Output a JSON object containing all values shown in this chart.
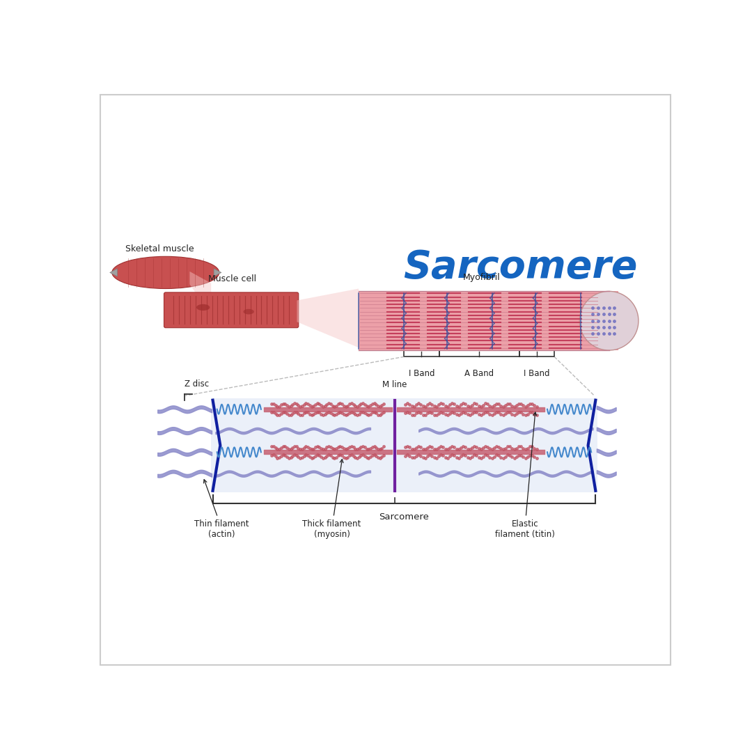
{
  "title": "Sarcomere",
  "title_color": "#1565C0",
  "title_fontsize": 40,
  "bg_color": "#FFFFFF",
  "border_color": "#CCCCCC",
  "labels": {
    "skeletal_muscle": "Skeletal muscle",
    "muscle_cell": "Muscle cell",
    "myofibril": "Myofibril",
    "i_band_left": "I Band",
    "a_band": "A Band",
    "i_band_right": "I Band",
    "z_disc": "Z disc",
    "m_line": "M line",
    "thin_filament": "Thin filament\n(actin)",
    "thick_filament": "Thick filament\n(myosin)",
    "elastic_filament": "Elastic\nfilament (titin)",
    "sarcomere": "Sarcomere"
  },
  "colors": {
    "muscle_red": "#C85050",
    "muscle_dark_red": "#A03030",
    "muscle_pink": "#F0B0B0",
    "myofibril_pink": "#E888A0",
    "myofibril_dark_red": "#C03050",
    "myofibril_blue_lines": "#3050A0",
    "sarcomere_bg": "#E8EEF8",
    "thin_filament_purple": "#9090CC",
    "thick_filament_pink": "#C86878",
    "spring_blue": "#4488CC",
    "z_disc_dark_blue": "#1020A0",
    "m_line_purple": "#7020A0",
    "dashed_line_color": "#AAAAAA",
    "gray_tendon": "#A0A0A0"
  }
}
